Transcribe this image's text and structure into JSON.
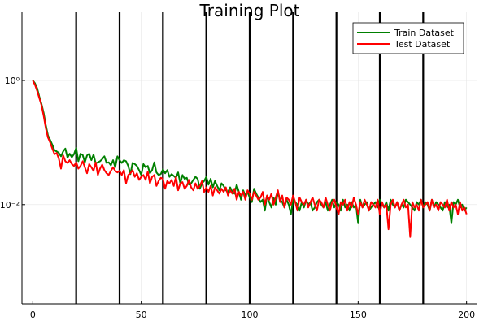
{
  "chart_data": {
    "type": "line",
    "title": "Training Plot",
    "xlabel": "",
    "ylabel": "",
    "xlim": [
      -5,
      205
    ],
    "ylim_log10": [
      -3.6,
      1.1
    ],
    "y_scale": "log10",
    "x_ticks": [
      0,
      50,
      100,
      150,
      200
    ],
    "y_ticks": [
      {
        "value": 1,
        "label": "10⁰"
      },
      {
        "value": 0.01,
        "label": "10⁻²"
      }
    ],
    "grid": true,
    "legend_position": "top-right",
    "vlines": [
      20,
      40,
      60,
      80,
      100,
      120,
      140,
      160,
      180
    ],
    "vline_color": "#000000",
    "series": [
      {
        "name": "Train Dataset",
        "color": "#008000",
        "x": [
          0,
          1,
          2,
          3,
          4,
          5,
          6,
          7,
          8,
          9,
          10,
          11,
          12,
          13,
          14,
          15,
          16,
          17,
          18,
          19,
          20,
          21,
          22,
          23,
          24,
          25,
          26,
          27,
          28,
          29,
          30,
          31,
          32,
          33,
          34,
          35,
          36,
          37,
          38,
          39,
          40,
          41,
          42,
          43,
          44,
          45,
          46,
          47,
          48,
          49,
          50,
          51,
          52,
          53,
          54,
          55,
          56,
          57,
          58,
          59,
          60,
          61,
          62,
          63,
          64,
          65,
          66,
          67,
          68,
          69,
          70,
          71,
          72,
          73,
          74,
          75,
          76,
          77,
          78,
          79,
          80,
          81,
          82,
          83,
          84,
          85,
          86,
          87,
          88,
          89,
          90,
          91,
          92,
          93,
          94,
          95,
          96,
          97,
          98,
          99,
          100,
          101,
          102,
          103,
          104,
          105,
          106,
          107,
          108,
          109,
          110,
          111,
          112,
          113,
          114,
          115,
          116,
          117,
          118,
          119,
          120,
          121,
          122,
          123,
          124,
          125,
          126,
          127,
          128,
          129,
          130,
          131,
          132,
          133,
          134,
          135,
          136,
          137,
          138,
          139,
          140,
          141,
          142,
          143,
          144,
          145,
          146,
          147,
          148,
          149,
          150,
          151,
          152,
          153,
          154,
          155,
          156,
          157,
          158,
          159,
          160,
          161,
          162,
          163,
          164,
          165,
          166,
          167,
          168,
          169,
          170,
          171,
          172,
          173,
          174,
          175,
          176,
          177,
          178,
          179,
          180,
          181,
          182,
          183,
          184,
          185,
          186,
          187,
          188,
          189,
          190,
          191,
          192,
          193,
          194,
          195,
          196,
          197,
          198,
          199,
          200
        ],
        "y": [
          1.0,
          0.9,
          0.75,
          0.55,
          0.42,
          0.3,
          0.19,
          0.13,
          0.11,
          0.092,
          0.075,
          0.072,
          0.068,
          0.06,
          0.072,
          0.08,
          0.057,
          0.066,
          0.058,
          0.065,
          0.082,
          0.05,
          0.066,
          0.063,
          0.048,
          0.062,
          0.066,
          0.052,
          0.064,
          0.046,
          0.048,
          0.05,
          0.054,
          0.06,
          0.047,
          0.048,
          0.043,
          0.052,
          0.04,
          0.06,
          0.052,
          0.047,
          0.052,
          0.05,
          0.042,
          0.031,
          0.047,
          0.045,
          0.042,
          0.036,
          0.03,
          0.045,
          0.04,
          0.042,
          0.032,
          0.036,
          0.048,
          0.033,
          0.03,
          0.031,
          0.037,
          0.032,
          0.036,
          0.028,
          0.031,
          0.029,
          0.027,
          0.033,
          0.022,
          0.03,
          0.026,
          0.027,
          0.021,
          0.022,
          0.025,
          0.028,
          0.026,
          0.018,
          0.022,
          0.024,
          0.028,
          0.021,
          0.026,
          0.019,
          0.024,
          0.02,
          0.017,
          0.022,
          0.02,
          0.017,
          0.016,
          0.019,
          0.016,
          0.015,
          0.021,
          0.016,
          0.012,
          0.017,
          0.014,
          0.016,
          0.013,
          0.011,
          0.018,
          0.015,
          0.013,
          0.011,
          0.012,
          0.008,
          0.014,
          0.011,
          0.009,
          0.013,
          0.01,
          0.016,
          0.012,
          0.011,
          0.009,
          0.012,
          0.01,
          0.007,
          0.012,
          0.011,
          0.01,
          0.008,
          0.011,
          0.009,
          0.012,
          0.01,
          0.011,
          0.008,
          0.009,
          0.011,
          0.012,
          0.01,
          0.009,
          0.011,
          0.008,
          0.01,
          0.012,
          0.009,
          0.011,
          0.01,
          0.008,
          0.012,
          0.009,
          0.01,
          0.008,
          0.011,
          0.009,
          0.01,
          0.005,
          0.012,
          0.009,
          0.01,
          0.011,
          0.008,
          0.009,
          0.01,
          0.011,
          0.009,
          0.012,
          0.01,
          0.009,
          0.011,
          0.008,
          0.012,
          0.01,
          0.009,
          0.011,
          0.008,
          0.01,
          0.009,
          0.012,
          0.011,
          0.01,
          0.009,
          0.008,
          0.011,
          0.01,
          0.012,
          0.009,
          0.011,
          0.01,
          0.008,
          0.012,
          0.009,
          0.011,
          0.01,
          0.009,
          0.008,
          0.011,
          0.009,
          0.01,
          0.005,
          0.011,
          0.01,
          0.012,
          0.009,
          0.01,
          0.008,
          0.009
        ]
      },
      {
        "name": "Test Dataset",
        "color": "#ff0000",
        "x": [
          0,
          1,
          2,
          3,
          4,
          5,
          6,
          7,
          8,
          9,
          10,
          11,
          12,
          13,
          14,
          15,
          16,
          17,
          18,
          19,
          20,
          21,
          22,
          23,
          24,
          25,
          26,
          27,
          28,
          29,
          30,
          31,
          32,
          33,
          34,
          35,
          36,
          37,
          38,
          39,
          40,
          41,
          42,
          43,
          44,
          45,
          46,
          47,
          48,
          49,
          50,
          51,
          52,
          53,
          54,
          55,
          56,
          57,
          58,
          59,
          60,
          61,
          62,
          63,
          64,
          65,
          66,
          67,
          68,
          69,
          70,
          71,
          72,
          73,
          74,
          75,
          76,
          77,
          78,
          79,
          80,
          81,
          82,
          83,
          84,
          85,
          86,
          87,
          88,
          89,
          90,
          91,
          92,
          93,
          94,
          95,
          96,
          97,
          98,
          99,
          100,
          101,
          102,
          103,
          104,
          105,
          106,
          107,
          108,
          109,
          110,
          111,
          112,
          113,
          114,
          115,
          116,
          117,
          118,
          119,
          120,
          121,
          122,
          123,
          124,
          125,
          126,
          127,
          128,
          129,
          130,
          131,
          132,
          133,
          134,
          135,
          136,
          137,
          138,
          139,
          140,
          141,
          142,
          143,
          144,
          145,
          146,
          147,
          148,
          149,
          150,
          151,
          152,
          153,
          154,
          155,
          156,
          157,
          158,
          159,
          160,
          161,
          162,
          163,
          164,
          165,
          166,
          167,
          168,
          169,
          170,
          171,
          172,
          173,
          174,
          175,
          176,
          177,
          178,
          179,
          180,
          181,
          182,
          183,
          184,
          185,
          186,
          187,
          188,
          189,
          190,
          191,
          192,
          193,
          194,
          195,
          196,
          197,
          198,
          199,
          200
        ],
        "y": [
          1.0,
          0.85,
          0.68,
          0.52,
          0.4,
          0.27,
          0.17,
          0.12,
          0.1,
          0.08,
          0.065,
          0.068,
          0.055,
          0.038,
          0.062,
          0.05,
          0.047,
          0.052,
          0.045,
          0.042,
          0.048,
          0.038,
          0.042,
          0.05,
          0.04,
          0.032,
          0.045,
          0.04,
          0.035,
          0.048,
          0.03,
          0.038,
          0.044,
          0.036,
          0.032,
          0.03,
          0.035,
          0.04,
          0.035,
          0.033,
          0.035,
          0.03,
          0.036,
          0.022,
          0.03,
          0.032,
          0.036,
          0.028,
          0.032,
          0.025,
          0.028,
          0.03,
          0.025,
          0.034,
          0.022,
          0.028,
          0.03,
          0.02,
          0.024,
          0.027,
          0.026,
          0.018,
          0.024,
          0.022,
          0.025,
          0.02,
          0.028,
          0.017,
          0.022,
          0.023,
          0.018,
          0.02,
          0.025,
          0.019,
          0.017,
          0.022,
          0.018,
          0.02,
          0.024,
          0.016,
          0.019,
          0.016,
          0.02,
          0.014,
          0.019,
          0.017,
          0.015,
          0.018,
          0.016,
          0.019,
          0.014,
          0.017,
          0.015,
          0.018,
          0.012,
          0.016,
          0.014,
          0.016,
          0.012,
          0.017,
          0.015,
          0.012,
          0.016,
          0.014,
          0.012,
          0.013,
          0.016,
          0.01,
          0.014,
          0.012,
          0.015,
          0.01,
          0.013,
          0.017,
          0.011,
          0.014,
          0.009,
          0.013,
          0.012,
          0.01,
          0.014,
          0.011,
          0.008,
          0.013,
          0.011,
          0.01,
          0.012,
          0.009,
          0.011,
          0.013,
          0.01,
          0.008,
          0.012,
          0.011,
          0.009,
          0.013,
          0.01,
          0.008,
          0.011,
          0.012,
          0.009,
          0.007,
          0.011,
          0.01,
          0.012,
          0.008,
          0.011,
          0.009,
          0.013,
          0.01,
          0.007,
          0.011,
          0.009,
          0.012,
          0.01,
          0.008,
          0.011,
          0.01,
          0.009,
          0.012,
          0.007,
          0.011,
          0.009,
          0.01,
          0.004,
          0.01,
          0.012,
          0.009,
          0.011,
          0.008,
          0.01,
          0.012,
          0.009,
          0.01,
          0.003,
          0.011,
          0.009,
          0.01,
          0.008,
          0.012,
          0.009,
          0.01,
          0.011,
          0.008,
          0.012,
          0.009,
          0.01,
          0.008,
          0.011,
          0.01,
          0.009,
          0.012,
          0.008,
          0.011,
          0.009,
          0.01,
          0.007,
          0.011,
          0.008,
          0.009,
          0.007
        ]
      }
    ]
  }
}
